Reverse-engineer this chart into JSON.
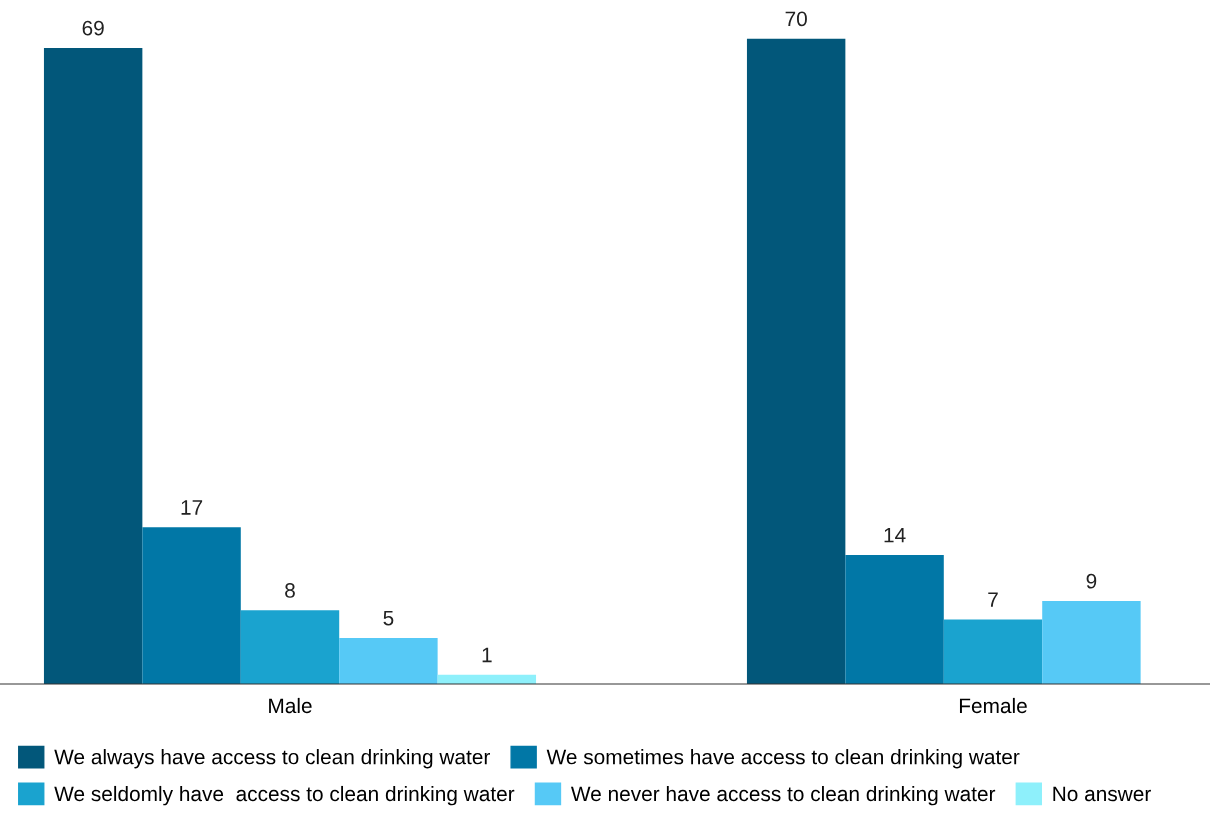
{
  "chart_data": {
    "type": "bar",
    "categories": [
      "Male",
      "Female"
    ],
    "series": [
      {
        "name": "We always have access to clean drinking water",
        "color": "#02577a",
        "values": [
          69,
          70
        ]
      },
      {
        "name": "We sometimes have access to clean drinking water",
        "color": "#0177a6",
        "values": [
          17,
          14
        ]
      },
      {
        "name": "We seldomly have  access to clean drinking water",
        "color": "#1aa3cf",
        "values": [
          8,
          7
        ]
      },
      {
        "name": "We never have access to clean drinking water",
        "color": "#56c9f6",
        "values": [
          5,
          9
        ]
      },
      {
        "name": "No answer",
        "color": "#8ef0fb",
        "values": [
          1,
          null
        ]
      }
    ],
    "data_labels": true,
    "legend": "bottom",
    "grid": false
  }
}
